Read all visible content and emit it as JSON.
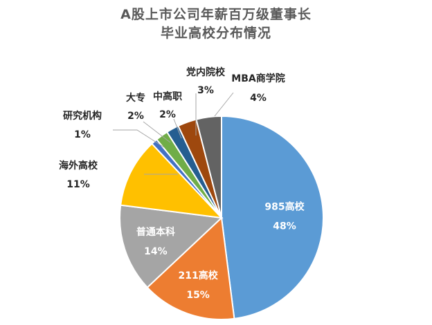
{
  "chart_data": {
    "type": "pie",
    "title_lines": [
      "A股上市公司年薪百万级董事长",
      "毕业高校分布情况"
    ],
    "slices": [
      {
        "name": "985高校",
        "pct_label": "48%",
        "value": 48,
        "color": "#5b9bd5"
      },
      {
        "name": "211高校",
        "pct_label": "15%",
        "value": 15,
        "color": "#ed7d31"
      },
      {
        "name": "普通本科",
        "pct_label": "14%",
        "value": 14,
        "color": "#a5a5a5"
      },
      {
        "name": "海外高校",
        "pct_label": "11%",
        "value": 11,
        "color": "#ffc000"
      },
      {
        "name": "研究机构",
        "pct_label": "1%",
        "value": 1,
        "color": "#4472c4"
      },
      {
        "name": "大专",
        "pct_label": "2%",
        "value": 2,
        "color": "#70ad47"
      },
      {
        "name": "中高职",
        "pct_label": "2%",
        "value": 2,
        "color": "#255e91"
      },
      {
        "name": "党内院校",
        "pct_label": "3%",
        "value": 3,
        "color": "#9e480e"
      },
      {
        "name": "MBA商学院",
        "pct_label": "4%",
        "value": 4,
        "color": "#636363"
      }
    ]
  }
}
